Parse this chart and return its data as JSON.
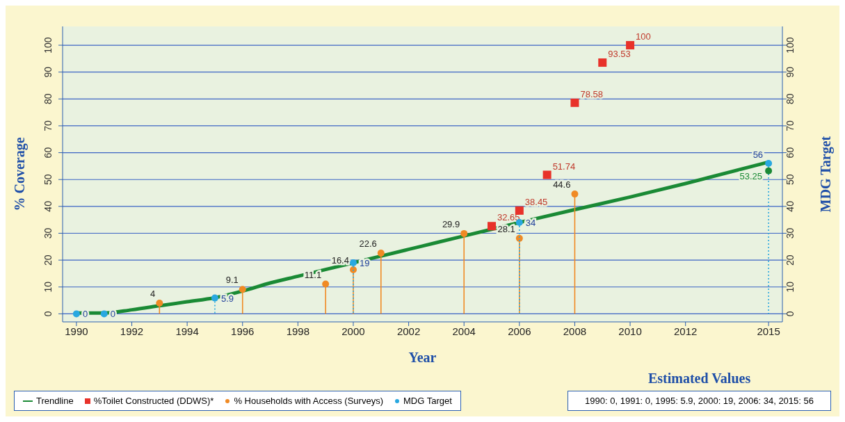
{
  "chart_data": {
    "type": "scatter",
    "xlabel": "Year",
    "ylabel": "% Coverage",
    "y2label": "MDG Target",
    "xlim": [
      1989.5,
      2015.5
    ],
    "xticks": [
      1990,
      1992,
      1994,
      1996,
      1998,
      2000,
      2002,
      2004,
      2006,
      2008,
      2010,
      2012,
      2015
    ],
    "ylim": [
      -3,
      107
    ],
    "yticks": [
      0,
      10,
      20,
      30,
      40,
      50,
      60,
      70,
      80,
      90,
      100
    ],
    "y2lim": [
      -3,
      107
    ],
    "y2ticks": [
      0,
      10,
      20,
      30,
      40,
      50,
      60,
      70,
      80,
      90,
      100
    ],
    "grid": "y",
    "legend": "bottom left",
    "series": [
      {
        "name": "Trendline",
        "type": "line",
        "color": "#1a8a35",
        "x": [
          1990,
          1991,
          1992,
          1993,
          1994,
          1995,
          1996,
          1997,
          1998,
          1999,
          2000,
          2001,
          2002,
          2003,
          2004,
          2005,
          2006,
          2008,
          2010,
          2012,
          2015
        ],
        "values": [
          0.3,
          0.3,
          1.5,
          3,
          4.5,
          6,
          8.5,
          11.5,
          14,
          16.5,
          19,
          21.5,
          24,
          26.5,
          29,
          31.5,
          34,
          38.8,
          43.5,
          48.5,
          56.5
        ]
      },
      {
        "name": "%Toilet Constructed (DDWS)*",
        "marker": "square",
        "color": "#e8322a",
        "x": [
          2005,
          2006,
          2007,
          2008,
          2009,
          2010
        ],
        "values": [
          32.65,
          38.45,
          51.74,
          78.58,
          93.53,
          100
        ],
        "value_labels": [
          "32.65",
          "38.45",
          "51.74",
          "78.58",
          "93.53",
          "100"
        ]
      },
      {
        "name": "% Households with Access (Surveys)",
        "type": "lollipop",
        "marker": "circle",
        "color": "#f08a24",
        "x": [
          1993,
          1996,
          1999,
          2000,
          2001,
          2004,
          2006,
          2008
        ],
        "values": [
          4,
          9.1,
          11.1,
          16.4,
          22.6,
          29.9,
          28.1,
          44.6
        ],
        "value_labels": [
          "4",
          "9.1",
          "11.1",
          "16.4",
          "22.6",
          "29.9",
          "28.1",
          "44.6"
        ]
      },
      {
        "name": "MDG Target",
        "type": "lollipop",
        "marker": "circle",
        "line_style": "dotted",
        "color": "#29a8e0",
        "x": [
          1990,
          1991,
          1995,
          2000,
          2006,
          2015
        ],
        "values": [
          0,
          0,
          5.9,
          19,
          34,
          56
        ],
        "value_labels": [
          "0",
          "0",
          "5.9",
          "19",
          "34",
          "56"
        ]
      },
      {
        "marker": "circle",
        "color": "#1a8a35",
        "x": [
          2015
        ],
        "values": [
          53.25
        ],
        "value_labels": [
          "53.25"
        ]
      }
    ],
    "annotations": [
      "Estimated Values",
      "1990: 0, 1991: 0, 1995: 5.9, 2000: 19, 2006: 34, 2015: 56"
    ]
  }
}
